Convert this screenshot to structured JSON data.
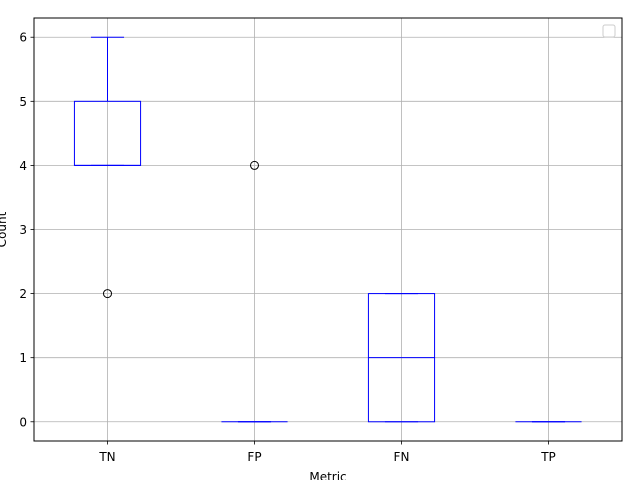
{
  "chart_data": {
    "type": "box",
    "title": "",
    "xlabel": "Metric",
    "ylabel": "Count",
    "categories": [
      "TN",
      "FP",
      "FN",
      "TP"
    ],
    "ylim": [
      -0.3,
      6.3
    ],
    "yticks": [
      0,
      1,
      2,
      3,
      4,
      5,
      6
    ],
    "grid": true,
    "legend": "top-right (empty)",
    "box_color": "#0000ff",
    "grid_color": "#b0b0b0",
    "boxes": [
      {
        "category": "TN",
        "q1": 4,
        "median": 4,
        "q3": 5,
        "whisker_low": 4,
        "whisker_high": 6,
        "outliers": [
          2
        ]
      },
      {
        "category": "FP",
        "q1": 0,
        "median": 0,
        "q3": 0,
        "whisker_low": 0,
        "whisker_high": 0,
        "outliers": [
          4
        ]
      },
      {
        "category": "FN",
        "q1": 0,
        "median": 1,
        "q3": 2,
        "whisker_low": 0,
        "whisker_high": 2,
        "outliers": []
      },
      {
        "category": "TP",
        "q1": 0,
        "median": 0,
        "q3": 0,
        "whisker_low": 0,
        "whisker_high": 0,
        "outliers": []
      }
    ]
  }
}
